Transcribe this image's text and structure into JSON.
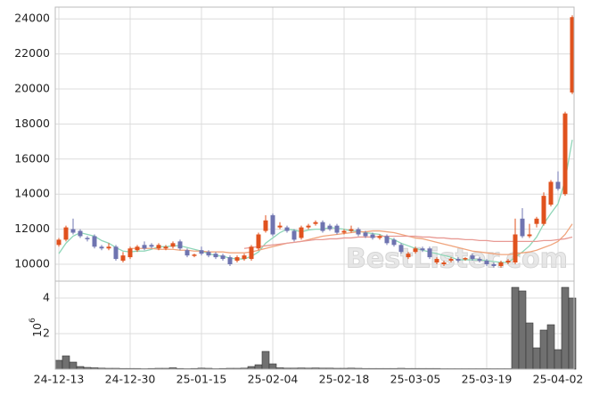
{
  "chart_data": {
    "type": "candlestick",
    "watermark": "BestLister.com",
    "categories": [
      "24-12-13",
      null,
      null,
      null,
      null,
      null,
      null,
      null,
      null,
      null,
      "24-12-30",
      null,
      null,
      null,
      null,
      null,
      null,
      null,
      null,
      null,
      "25-01-15",
      null,
      null,
      null,
      null,
      null,
      null,
      null,
      null,
      null,
      "25-02-04",
      null,
      null,
      null,
      null,
      null,
      null,
      null,
      null,
      null,
      "25-02-18",
      null,
      null,
      null,
      null,
      null,
      null,
      null,
      null,
      null,
      "25-03-05",
      null,
      null,
      null,
      null,
      null,
      null,
      null,
      null,
      null,
      "25-03-19",
      null,
      null,
      null,
      null,
      null,
      null,
      null,
      null,
      null,
      "25-04-02",
      null,
      null
    ],
    "open": [
      11100,
      11400,
      12000,
      11900,
      11500,
      11600,
      11000,
      10900,
      11000,
      10200,
      10400,
      10800,
      11100,
      11100,
      10900,
      10900,
      11000,
      11300,
      10800,
      10500,
      10800,
      10700,
      10600,
      10500,
      10400,
      10200,
      10300,
      10300,
      10900,
      11900,
      12800,
      12100,
      12100,
      11900,
      11500,
      12100,
      12300,
      12400,
      12200,
      12200,
      11800,
      11900,
      12000,
      11800,
      11700,
      11500,
      11600,
      11400,
      11100,
      10400,
      10700,
      10900,
      10900,
      10100,
      10000,
      10200,
      10300,
      10300,
      10500,
      10300,
      10200,
      10000,
      9900,
      10100,
      10100,
      12600,
      11600,
      12300,
      12300,
      13400,
      14700,
      14000,
      19800
    ],
    "high": [
      11500,
      12200,
      12600,
      12000,
      11600,
      11700,
      11100,
      11200,
      11100,
      10700,
      11000,
      11100,
      11300,
      11200,
      11200,
      11100,
      11300,
      11400,
      10900,
      10600,
      11000,
      10800,
      10700,
      10600,
      10500,
      10500,
      10600,
      11100,
      11800,
      12800,
      12900,
      12400,
      12200,
      12000,
      12200,
      12300,
      12500,
      12500,
      12300,
      12300,
      12000,
      12200,
      12100,
      11900,
      11800,
      11700,
      11700,
      11500,
      11200,
      10700,
      11000,
      11000,
      11000,
      10400,
      10200,
      10400,
      10400,
      10400,
      10600,
      10400,
      10300,
      10100,
      10200,
      10300,
      12600,
      13200,
      12300,
      12700,
      14100,
      14800,
      15300,
      18700,
      24200
    ],
    "low": [
      11000,
      11300,
      11700,
      11500,
      11300,
      10900,
      10800,
      10800,
      10200,
      10100,
      10300,
      10700,
      10800,
      10900,
      10800,
      10800,
      10900,
      10800,
      10400,
      10400,
      10500,
      10400,
      10300,
      10200,
      9900,
      10100,
      10200,
      10200,
      10800,
      11800,
      11600,
      12000,
      11800,
      11300,
      11400,
      12000,
      12200,
      11800,
      11900,
      11700,
      11700,
      11800,
      11600,
      11500,
      11400,
      11400,
      11100,
      11000,
      10600,
      10300,
      10600,
      10700,
      10300,
      10000,
      9900,
      10100,
      10100,
      10200,
      10200,
      10100,
      9900,
      9800,
      9800,
      10000,
      10000,
      11500,
      11500,
      12100,
      12200,
      13300,
      14200,
      13900,
      19700
    ],
    "close": [
      11400,
      12100,
      11800,
      11600,
      11450,
      11000,
      10900,
      11000,
      10300,
      10500,
      10900,
      11000,
      10900,
      11000,
      11100,
      11000,
      11200,
      10900,
      10500,
      10550,
      10600,
      10500,
      10400,
      10300,
      10000,
      10400,
      10500,
      11000,
      11700,
      12500,
      11700,
      12200,
      11900,
      11400,
      12100,
      12200,
      12400,
      11900,
      12000,
      11800,
      11900,
      12000,
      11700,
      11600,
      11500,
      11600,
      11200,
      11100,
      10700,
      10600,
      10900,
      10800,
      10400,
      10300,
      10100,
      10300,
      10200,
      10350,
      10300,
      10200,
      10000,
      9900,
      10100,
      10200,
      11700,
      11600,
      11700,
      12600,
      13900,
      14700,
      14300,
      18600,
      24100
    ],
    "up_color": "#e0521e",
    "down_color": "#6f74b0",
    "ma_series": [
      {
        "color": "#8fd6b8",
        "values": [
          10600,
          11200,
          11600,
          11800,
          11700,
          11600,
          11350,
          11200,
          10950,
          10750,
          10700,
          10750,
          10750,
          10850,
          11000,
          11000,
          11050,
          11050,
          10950,
          10850,
          10750,
          10600,
          10500,
          10450,
          10350,
          10300,
          10300,
          10450,
          10700,
          11200,
          11500,
          11800,
          12000,
          11950,
          11850,
          11950,
          12000,
          12000,
          12100,
          12050,
          12000,
          11900,
          11900,
          11800,
          11750,
          11700,
          11500,
          11400,
          11200,
          11050,
          10900,
          10800,
          10700,
          10600,
          10500,
          10400,
          10250,
          10250,
          10250,
          10250,
          10200,
          10150,
          10100,
          10100,
          10400,
          10700,
          11050,
          11550,
          12300,
          12900,
          13450,
          14800,
          17100
        ]
      },
      {
        "color": "#f0a47c",
        "values": [
          null,
          null,
          null,
          null,
          null,
          null,
          null,
          null,
          null,
          null,
          10900,
          10900,
          10900,
          10900,
          10850,
          10850,
          10850,
          10800,
          10800,
          10750,
          10750,
          10700,
          10700,
          10700,
          10650,
          10650,
          10650,
          10700,
          10800,
          10900,
          11000,
          11100,
          11200,
          11250,
          11300,
          11400,
          11500,
          11600,
          11650,
          11700,
          11750,
          11800,
          11850,
          11850,
          11900,
          11900,
          11850,
          11800,
          11700,
          11600,
          11500,
          11450,
          11350,
          11250,
          11150,
          11050,
          10950,
          10850,
          10750,
          10700,
          10650,
          10600,
          10550,
          10550,
          10600,
          10650,
          10700,
          10800,
          10950,
          11100,
          11300,
          11700,
          12300
        ]
      },
      {
        "color": "#e89a94",
        "values": [
          null,
          null,
          null,
          null,
          null,
          null,
          null,
          null,
          null,
          null,
          null,
          null,
          null,
          null,
          null,
          null,
          null,
          null,
          null,
          null,
          null,
          null,
          null,
          null,
          null,
          null,
          10900,
          10950,
          11000,
          11050,
          11100,
          11150,
          11200,
          11250,
          11300,
          11350,
          11400,
          11400,
          11450,
          11450,
          11500,
          11500,
          11550,
          11550,
          11550,
          11600,
          11600,
          11600,
          11600,
          11600,
          11600,
          11550,
          11550,
          11500,
          11500,
          11450,
          11450,
          11400,
          11400,
          11350,
          11350,
          11300,
          11300,
          11300,
          11300,
          11300,
          11300,
          11300,
          11350,
          11350,
          11400,
          11450,
          11550
        ]
      }
    ],
    "ylim": [
      9035,
      24670
    ],
    "yticks": [
      10000,
      12000,
      14000,
      16000,
      18000,
      20000,
      22000,
      24000
    ],
    "volume": [
      0.5,
      0.75,
      0.4,
      0.15,
      0.1,
      0.08,
      0.06,
      0.05,
      0.05,
      0.04,
      0.04,
      0.04,
      0.03,
      0.04,
      0.05,
      0.05,
      0.08,
      0.04,
      0.03,
      0.04,
      0.06,
      0.05,
      0.03,
      0.04,
      0.05,
      0.05,
      0.06,
      0.15,
      0.25,
      1.0,
      0.3,
      0.08,
      0.06,
      0.06,
      0.07,
      0.06,
      0.07,
      0.06,
      0.06,
      0.05,
      0.05,
      0.06,
      0.05,
      0.04,
      0.04,
      0.04,
      0.04,
      0.04,
      0.05,
      0.04,
      0.04,
      0.04,
      0.04,
      0.04,
      0.03,
      0.03,
      0.03,
      0.03,
      0.03,
      0.03,
      0.03,
      0.03,
      0.03,
      0.03,
      4.6,
      4.4,
      2.6,
      1.2,
      2.2,
      2.5,
      1.1,
      4.6,
      4.0
    ],
    "volume_color": "#707070",
    "y2lim": [
      0,
      4.95
    ],
    "y2ticks": [
      2,
      4
    ],
    "y2_scale_base": "10",
    "y2_scale_exponent": "6",
    "grid": true
  }
}
